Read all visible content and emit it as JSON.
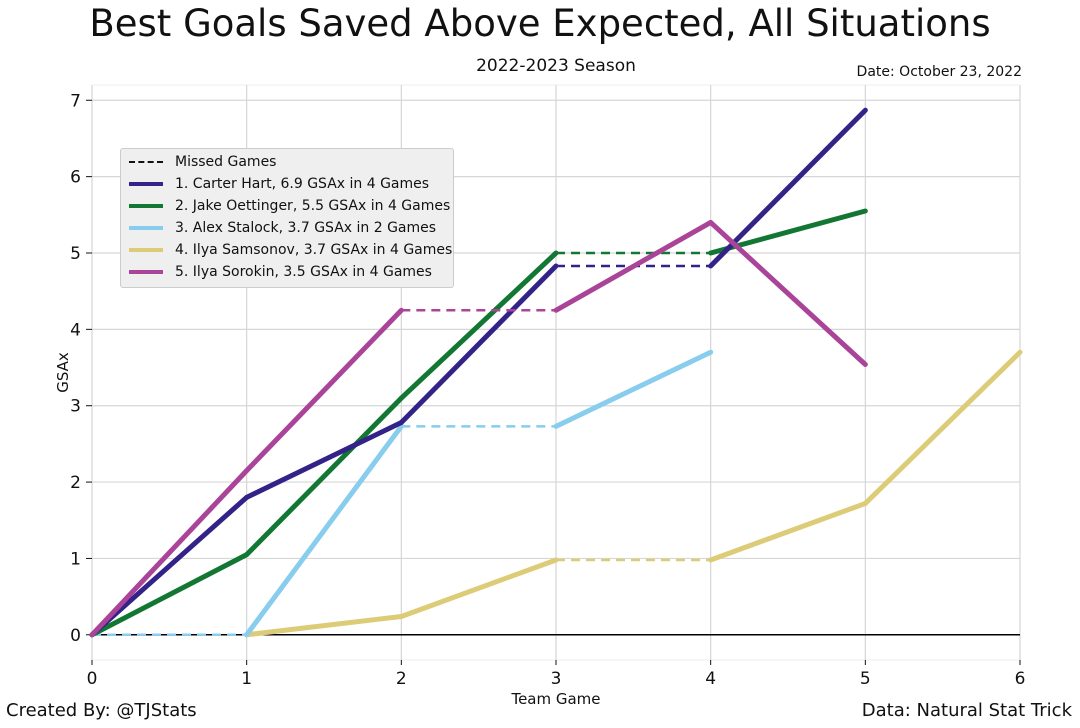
{
  "chart_data": {
    "type": "line",
    "title": "Best Goals Saved Above Expected, All Situations",
    "subtitle": "2022-2023 Season",
    "date": "Date: October 23, 2022",
    "xlabel": "Team Game",
    "ylabel": "GSAx",
    "xlim": [
      0,
      6
    ],
    "ylim": [
      -0.33,
      7.2
    ],
    "xticks": [
      "0",
      "1",
      "2",
      "3",
      "4",
      "5",
      "6"
    ],
    "yticks": [
      "0",
      "1",
      "2",
      "3",
      "4",
      "5",
      "6",
      "7"
    ],
    "grid": true,
    "legend_position": "upper-left",
    "missed_label": "Missed Games",
    "series": [
      {
        "name": "1. Carter Hart, 6.9 GSAx in 4 Games",
        "color": "#332288",
        "points": [
          [
            0,
            0
          ],
          [
            1,
            1.8
          ],
          [
            2,
            2.78
          ],
          [
            3,
            4.83
          ],
          [
            4,
            4.83
          ],
          [
            5,
            6.87
          ]
        ],
        "missed_segments": [
          3
        ]
      },
      {
        "name": "2. Jake Oettinger, 5.5 GSAx in 4 Games",
        "color": "#117733",
        "points": [
          [
            0,
            0
          ],
          [
            1,
            1.05
          ],
          [
            2,
            3.1
          ],
          [
            3,
            5.0
          ],
          [
            4,
            5.0
          ],
          [
            5,
            5.55
          ]
        ],
        "missed_segments": [
          3
        ]
      },
      {
        "name": "3. Alex Stalock, 3.7 GSAx in 2 Games",
        "color": "#88CCEE",
        "points": [
          [
            0,
            0
          ],
          [
            1,
            0
          ],
          [
            2,
            2.73
          ],
          [
            3,
            2.73
          ],
          [
            4,
            3.7
          ]
        ],
        "missed_segments": [
          0,
          2
        ]
      },
      {
        "name": "4. Ilya Samsonov, 3.7 GSAx in 4 Games",
        "color": "#DDCC77",
        "points": [
          [
            0,
            0
          ],
          [
            1,
            0
          ],
          [
            2,
            0.24
          ],
          [
            3,
            0.98
          ],
          [
            4,
            0.98
          ],
          [
            5,
            1.72
          ],
          [
            6,
            3.7
          ]
        ],
        "missed_segments": [
          0,
          3
        ]
      },
      {
        "name": "5. Ilya Sorokin, 3.5 GSAx in 4 Games",
        "color": "#AA4499",
        "points": [
          [
            0,
            0
          ],
          [
            1,
            2.15
          ],
          [
            2,
            4.25
          ],
          [
            3,
            4.25
          ],
          [
            4,
            5.4
          ],
          [
            5,
            3.54
          ]
        ],
        "missed_segments": [
          2
        ]
      }
    ]
  },
  "footer": {
    "created_by": "Created By: @TJStats",
    "source": "Data: Natural Stat Trick"
  }
}
